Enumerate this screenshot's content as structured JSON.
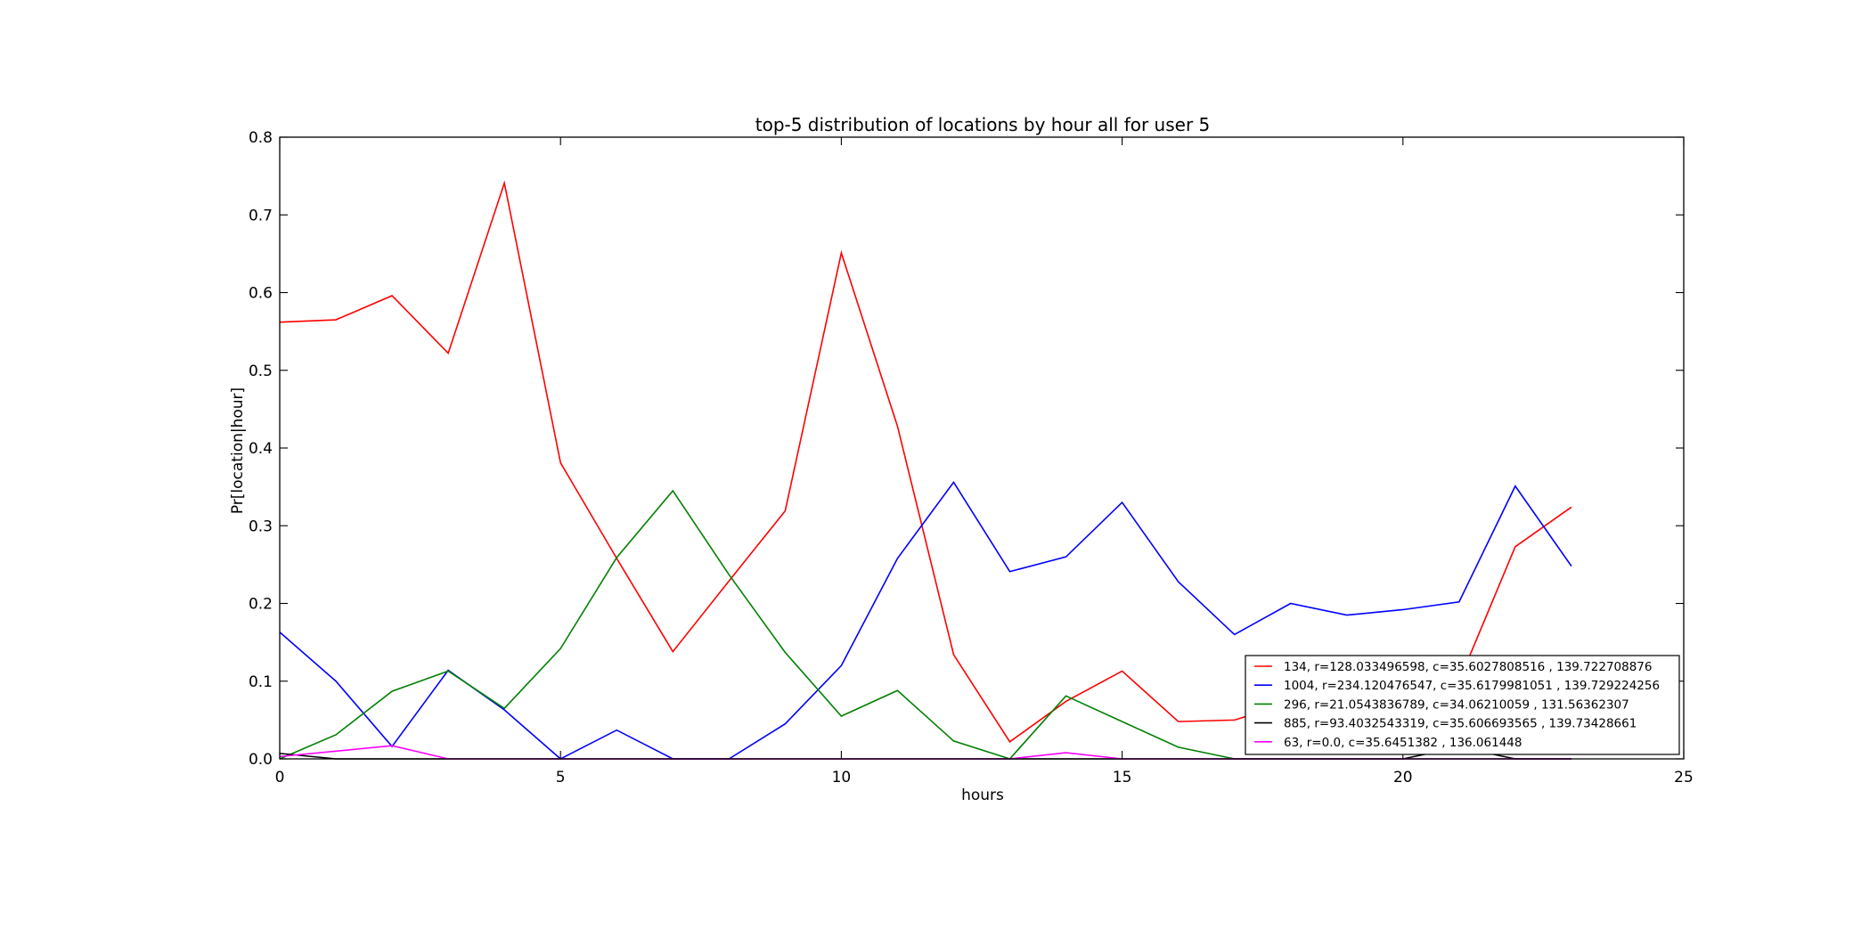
{
  "chart_data": {
    "type": "line",
    "title": "top-5 distribution of locations by hour all for user 5",
    "xlabel": "hours",
    "ylabel": "Pr[location|hour]",
    "xlim": [
      0,
      25
    ],
    "ylim": [
      0,
      0.8
    ],
    "xticks": [
      0,
      5,
      10,
      15,
      20,
      25
    ],
    "yticks": [
      "0.0",
      "0.1",
      "0.2",
      "0.3",
      "0.4",
      "0.5",
      "0.6",
      "0.7",
      "0.8"
    ],
    "grid": false,
    "legend_position": "lower-right",
    "x": [
      0,
      1,
      2,
      3,
      4,
      5,
      6,
      7,
      8,
      9,
      10,
      11,
      12,
      13,
      14,
      15,
      16,
      17,
      18,
      19,
      20,
      21,
      22,
      23
    ],
    "series": [
      {
        "name": "134, r=128.033496598, c=35.6027808516 , 139.722708876",
        "color": "#ff0000",
        "values": [
          0.562,
          0.565,
          0.596,
          0.522,
          0.741,
          0.381,
          0.258,
          0.138,
          0.229,
          0.319,
          0.651,
          0.428,
          0.134,
          0.022,
          0.074,
          0.113,
          0.048,
          0.05,
          0.072,
          0.055,
          0.04,
          0.1,
          0.273,
          0.324
        ]
      },
      {
        "name": "1004, r=234.120476547, c=35.6179981051 , 139.729224256",
        "color": "#0000ff",
        "values": [
          0.163,
          0.1,
          0.016,
          0.114,
          0.063,
          0.0,
          0.037,
          0.0,
          0.0,
          0.045,
          0.12,
          0.258,
          0.356,
          0.241,
          0.26,
          0.33,
          0.228,
          0.16,
          0.2,
          0.185,
          0.192,
          0.202,
          0.351,
          0.248
        ]
      },
      {
        "name": "296, r=21.0543836789, c=34.06210059 , 131.56362307",
        "color": "#008000",
        "values": [
          0.0,
          0.031,
          0.087,
          0.113,
          0.065,
          0.142,
          0.259,
          0.345,
          0.237,
          0.137,
          0.055,
          0.088,
          0.023,
          0.0,
          0.081,
          0.048,
          0.015,
          0.0,
          0.0,
          0.0,
          0.0,
          0.0,
          0.0,
          0.0
        ]
      },
      {
        "name": "885, r=93.4032543319, c=35.606693565 , 139.73428661",
        "color": "#000000",
        "values": [
          0.007,
          0.0,
          0.0,
          0.0,
          0.0,
          0.0,
          0.0,
          0.0,
          0.0,
          0.0,
          0.0,
          0.0,
          0.0,
          0.0,
          0.0,
          0.0,
          0.0,
          0.0,
          0.0,
          0.0,
          0.0,
          0.015,
          0.0,
          0.0
        ]
      },
      {
        "name": "63, r=0.0, c=35.6451382 , 136.061448",
        "color": "#ff00ff",
        "values": [
          0.003,
          0.01,
          0.017,
          0.0,
          0.0,
          0.0,
          0.0,
          0.0,
          0.0,
          0.0,
          0.0,
          0.0,
          0.0,
          0.0,
          0.008,
          0.0,
          0.0,
          0.0,
          0.0,
          0.0,
          0.0,
          0.0,
          0.0,
          0.0
        ]
      }
    ]
  }
}
